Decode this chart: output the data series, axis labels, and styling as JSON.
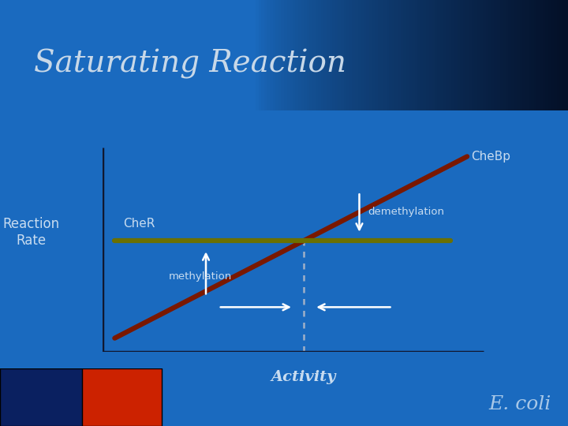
{
  "title": "Saturating Reaction",
  "title_color": "#c8d8e8",
  "title_fontsize": 28,
  "bg_color": "#1a6abf",
  "dark_bg_color": "#061830",
  "header_bar_color": "#35aadd",
  "chebp_label": "CheBp",
  "cher_label": "CheR",
  "activity_label": "Activity",
  "reaction_rate_label": "Reaction\nRate",
  "methylation_label": "methylation",
  "demethylation_label": "demethylation",
  "label_color": "#c8dcf0",
  "ecoli_label": "E. coli",
  "ecoli_color": "#a8c8e8",
  "ecoli_fontsize": 18,
  "chebp_line_color": "#7a1800",
  "cher_line_color": "#6b7000",
  "axis_line_color": "#111830",
  "dashed_line_color": "#a0b0c8",
  "footer_red_color": "#cc2200",
  "footer_dark_color": "#061830",
  "footer_mid_color": "#0a2060"
}
